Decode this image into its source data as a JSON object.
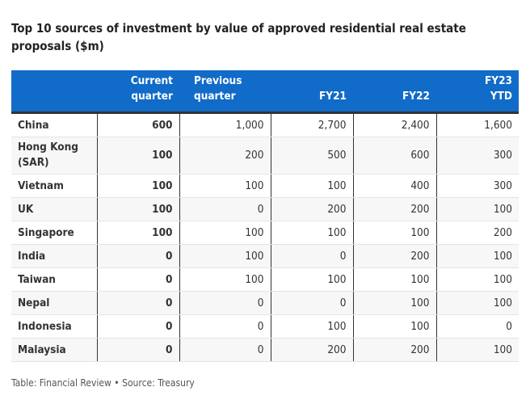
{
  "title": "Top 10 sources of investment by value of approved residential real estate proposals ($m)",
  "chart_data": {
    "type": "table",
    "columns": [
      "",
      "Current quarter",
      "Previous quarter",
      "FY21",
      "FY22",
      "FY23 YTD"
    ],
    "rows": [
      [
        "China",
        "600",
        "1,000",
        "2,700",
        "2,400",
        "1,600"
      ],
      [
        "Hong Kong (SAR)",
        "100",
        "200",
        "500",
        "600",
        "300"
      ],
      [
        "Vietnam",
        "100",
        "100",
        "100",
        "400",
        "300"
      ],
      [
        "UK",
        "100",
        "0",
        "200",
        "200",
        "100"
      ],
      [
        "Singapore",
        "100",
        "100",
        "100",
        "100",
        "200"
      ],
      [
        "India",
        "0",
        "100",
        "0",
        "200",
        "100"
      ],
      [
        "Taiwan",
        "0",
        "100",
        "100",
        "100",
        "100"
      ],
      [
        "Nepal",
        "0",
        "0",
        "0",
        "100",
        "100"
      ],
      [
        "Indonesia",
        "0",
        "0",
        "100",
        "100",
        "0"
      ],
      [
        "Malaysia",
        "0",
        "0",
        "200",
        "200",
        "100"
      ]
    ],
    "header_color": "#116bc8"
  },
  "footer": "Table: Financial Review • Source: Treasury"
}
